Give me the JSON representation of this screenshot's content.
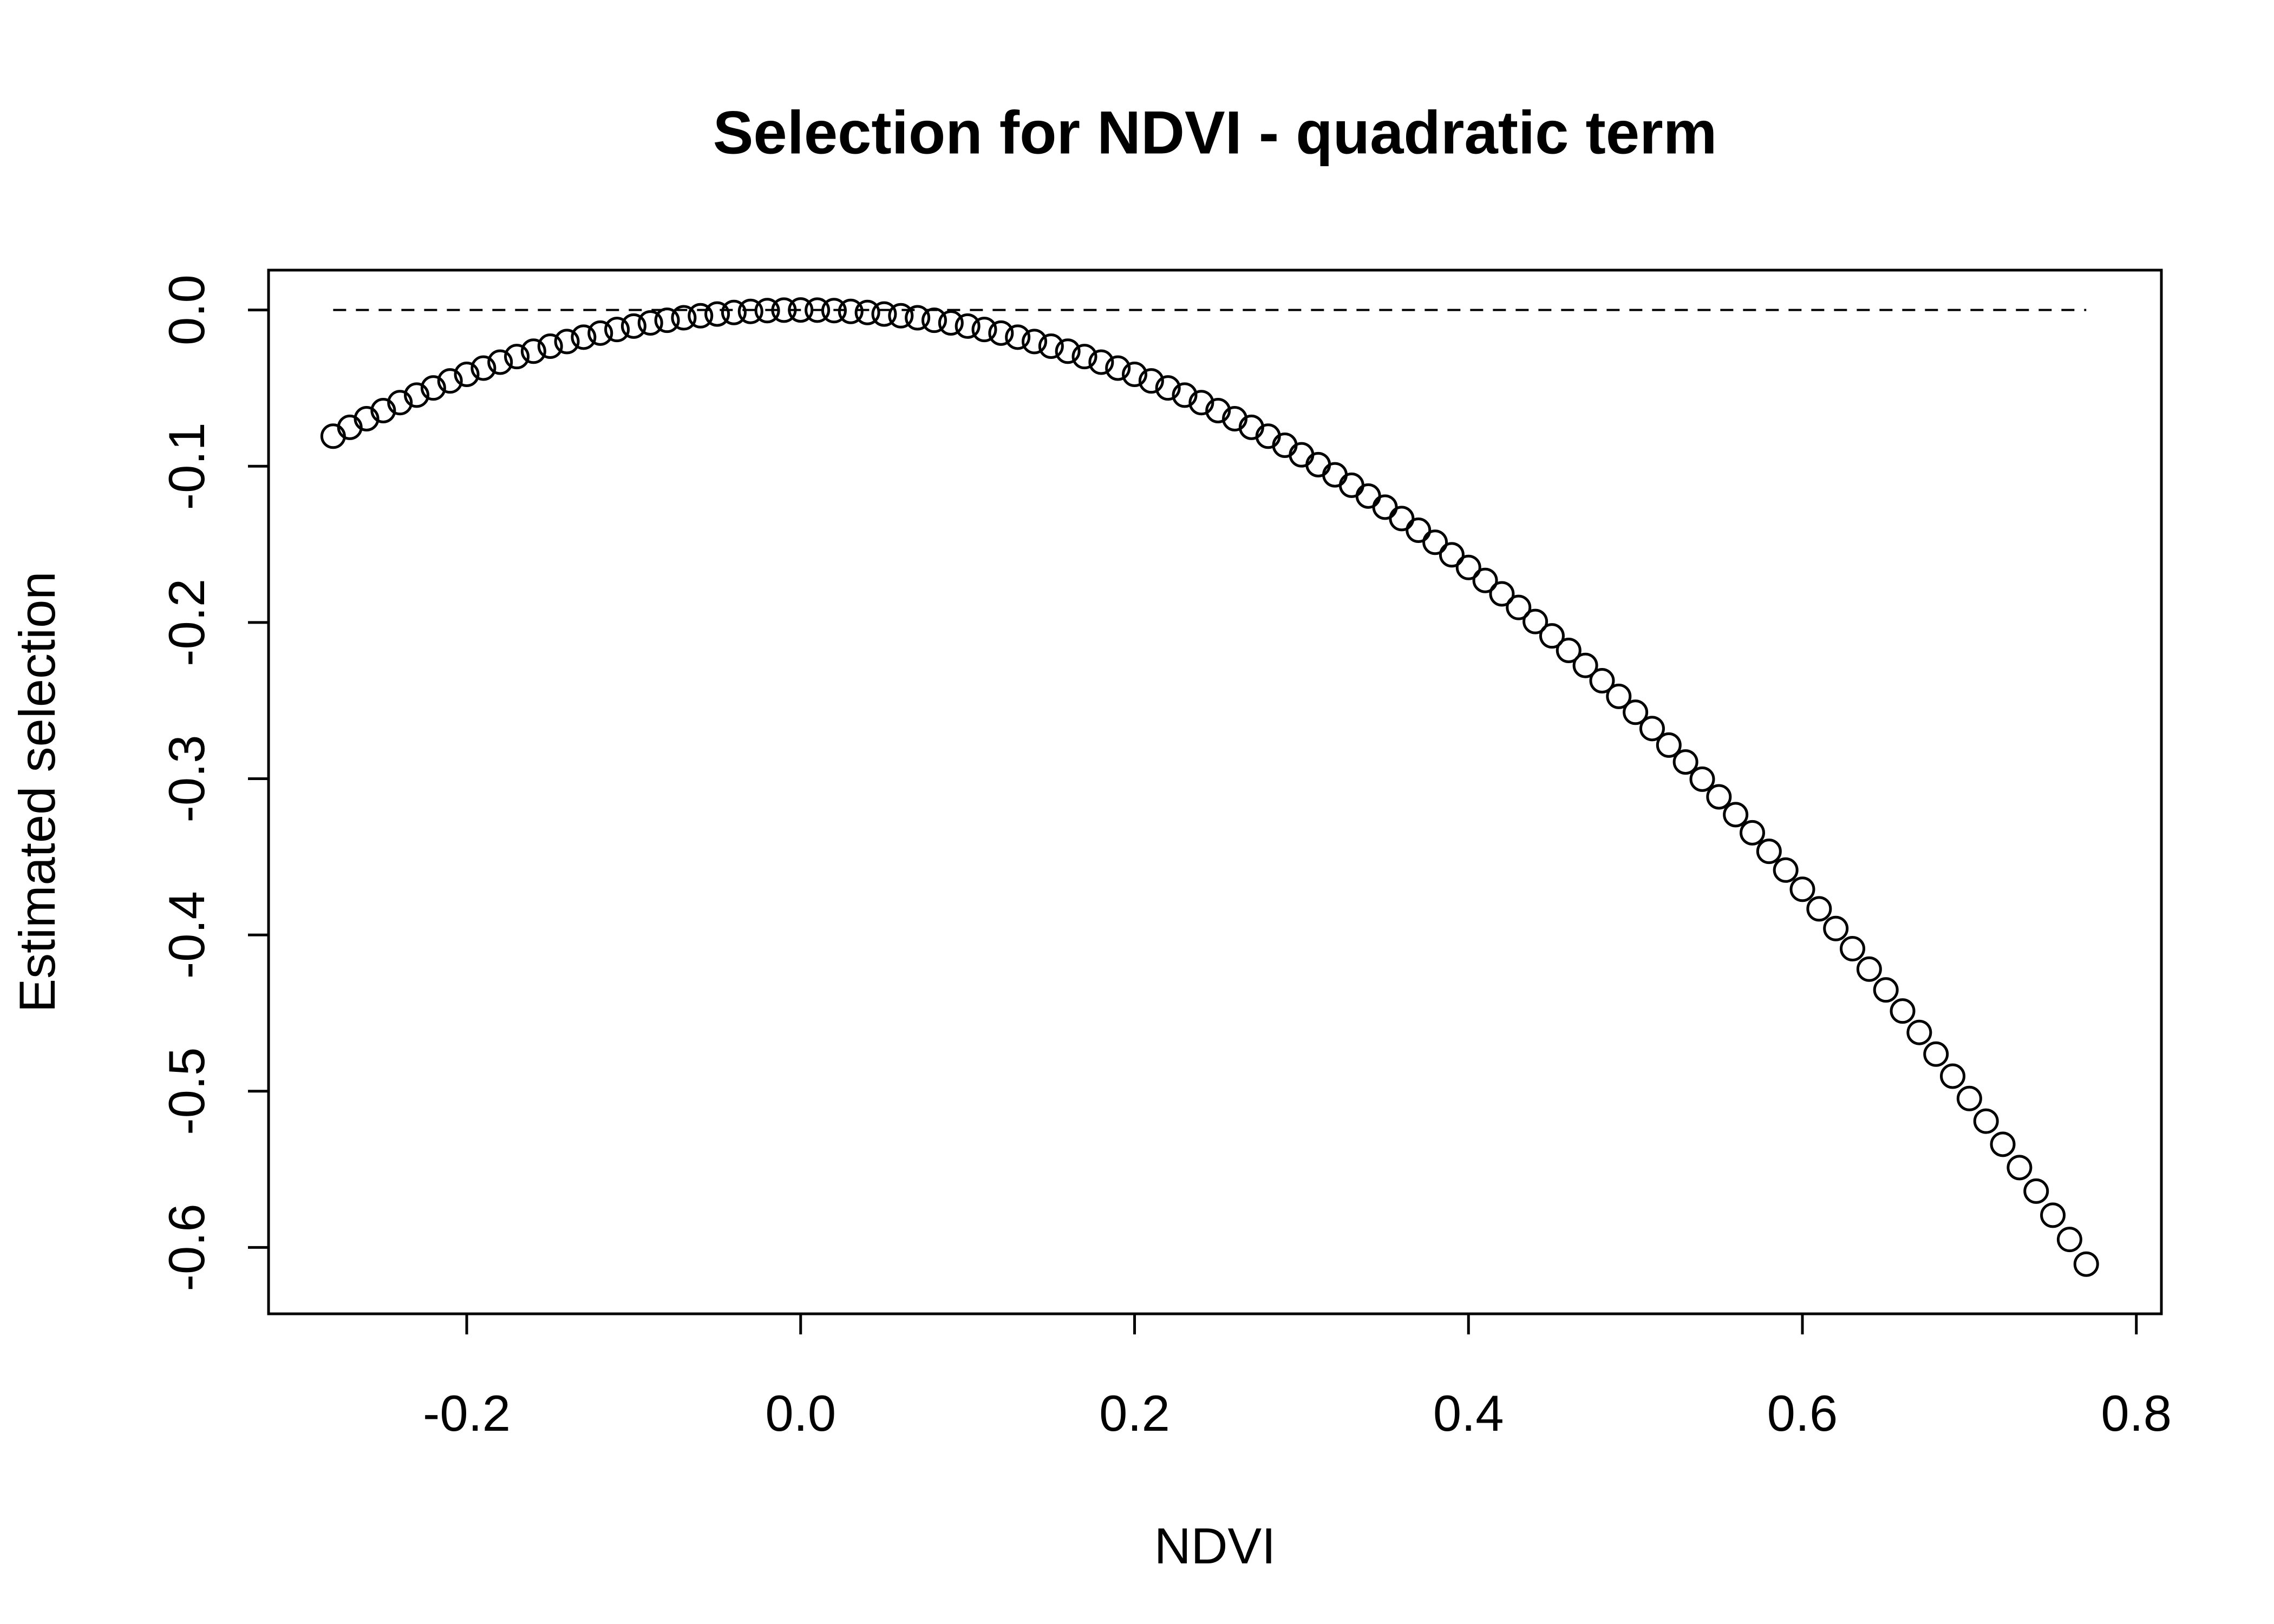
{
  "chart_data": {
    "type": "scatter",
    "title": "Selection for NDVI - quadratic term",
    "x_label": "NDVI",
    "y_label": "Estimated selection",
    "xlim": [
      -0.3187,
      0.815
    ],
    "ylim": [
      -0.6425,
      0.0255
    ],
    "xticks": [
      -0.2,
      {
        "value": 0,
        "label": "0.0"
      },
      0.2,
      0.4,
      0.6,
      0.8
    ],
    "yticks": [
      {
        "value": 0,
        "label": "0.0"
      },
      -0.1,
      -0.2,
      -0.3,
      -0.4,
      -0.5,
      -0.6
    ],
    "hline": 0,
    "color": "#000000",
    "series": [
      {
        "name": null,
        "color": "#000000",
        "x": [
          -0.28,
          -0.27,
          -0.26,
          -0.25,
          -0.24,
          -0.23,
          -0.22,
          -0.21,
          -0.2,
          -0.19,
          -0.18,
          -0.17,
          -0.16,
          -0.15,
          -0.14,
          -0.13,
          -0.12,
          -0.11,
          -0.1,
          -0.09,
          -0.08,
          -0.07,
          -0.06,
          -0.05,
          -0.04,
          -0.03,
          -0.02,
          -0.01,
          0,
          0.01,
          0.02,
          0.03,
          0.04,
          0.05,
          0.06,
          0.07,
          0.08,
          0.09,
          0.1,
          0.11,
          0.12,
          0.13,
          0.14,
          0.15,
          0.16,
          0.17,
          0.18,
          0.19,
          0.2,
          0.21,
          0.22,
          0.23,
          0.24,
          0.25,
          0.26,
          0.27,
          0.28,
          0.29,
          0.3,
          0.31,
          0.32,
          0.33,
          0.34,
          0.35,
          0.36,
          0.37,
          0.38,
          0.39,
          0.4,
          0.41,
          0.42,
          0.43,
          0.44,
          0.45,
          0.46,
          0.47,
          0.48,
          0.49,
          0.5,
          0.51,
          0.52,
          0.53,
          0.54,
          0.55,
          0.56,
          0.57,
          0.58,
          0.59,
          0.6,
          0.61,
          0.62,
          0.63,
          0.64,
          0.65,
          0.66,
          0.67,
          0.68,
          0.69,
          0.7,
          0.71,
          0.72,
          0.73,
          0.74,
          0.75,
          0.76,
          0.77
        ],
        "values": [
          -0.0808,
          -0.0751,
          -0.0696,
          -0.0644,
          -0.0593,
          -0.0545,
          -0.0499,
          -0.0454,
          -0.0412,
          -0.0372,
          -0.0334,
          -0.0298,
          -0.0264,
          -0.0232,
          -0.0202,
          -0.0174,
          -0.0148,
          -0.0125,
          -0.0103,
          -0.0083,
          -0.0066,
          -0.005,
          -0.0037,
          -0.0026,
          -0.0016,
          -0.0009,
          -0.0004,
          -0.0001,
          0,
          -0.0001,
          -0.0004,
          -0.0009,
          -0.0016,
          -0.0026,
          -0.0037,
          -0.005,
          -0.0066,
          -0.0083,
          -0.0103,
          -0.0125,
          -0.0148,
          -0.0174,
          -0.0202,
          -0.0232,
          -0.0264,
          -0.0298,
          -0.0334,
          -0.0372,
          -0.0412,
          -0.0454,
          -0.0499,
          -0.0545,
          -0.0593,
          -0.0644,
          -0.0696,
          -0.0751,
          -0.0808,
          -0.0866,
          -0.0927,
          -0.099,
          -0.1055,
          -0.1122,
          -0.1191,
          -0.1262,
          -0.1335,
          -0.141,
          -0.1487,
          -0.1567,
          -0.1648,
          -0.1731,
          -0.1817,
          -0.1904,
          -0.1994,
          -0.2086,
          -0.2179,
          -0.2275,
          -0.2373,
          -0.2473,
          -0.2575,
          -0.2679,
          -0.2785,
          -0.2893,
          -0.3003,
          -0.3116,
          -0.323,
          -0.3346,
          -0.3465,
          -0.3585,
          -0.3708,
          -0.3833,
          -0.3959,
          -0.4088,
          -0.4219,
          -0.4352,
          -0.4487,
          -0.4624,
          -0.4763,
          -0.4904,
          -0.5047,
          -0.5192,
          -0.534,
          -0.5489,
          -0.564,
          -0.5794,
          -0.5949,
          -0.6107
        ]
      }
    ]
  }
}
